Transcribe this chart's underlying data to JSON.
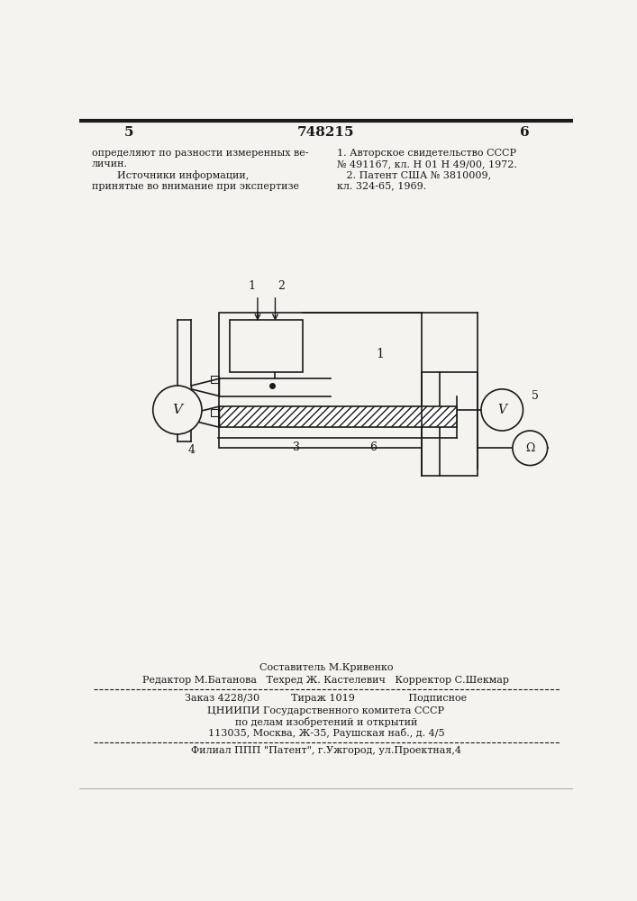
{
  "bg_color": "#f5f3f0",
  "page_num_left": "5",
  "page_num_center": "748215",
  "page_num_right": "6",
  "text_left_col": [
    "определяют по разности измеренных ве-",
    "личин.",
    "        Источники информации,",
    "принятые во внимание при экспертизе"
  ],
  "text_right_col": [
    "1. Авторское свидетельство СССР",
    "№ 491167, кл. Н 01 Н 49/00, 1972.",
    "   2. Патент США № 3810009,",
    "кл. 324-65, 1969."
  ],
  "footer_composer": "Составитель М.Кривенко",
  "footer_editor": "Редактор М.Батанова   Техред Ж. Кастелевич   Корректор С.Шекмар",
  "footer_order": "Заказ 4228/30          Тираж 1019                 Подписное",
  "footer_org1": "ЦНИИПИ Государственного комитета СССР",
  "footer_org2": "по делам изобретений и открытий",
  "footer_addr": "113035, Москва, Ж-35, Раушская наб., д. 4/5",
  "footer_branch": "Филиал ППП \"Патент\", г.Ужгород, ул.Проектная,4",
  "label_1": "1",
  "label_2": "2",
  "label_3": "3",
  "label_4": "4",
  "label_5": "5",
  "label_6": "6"
}
